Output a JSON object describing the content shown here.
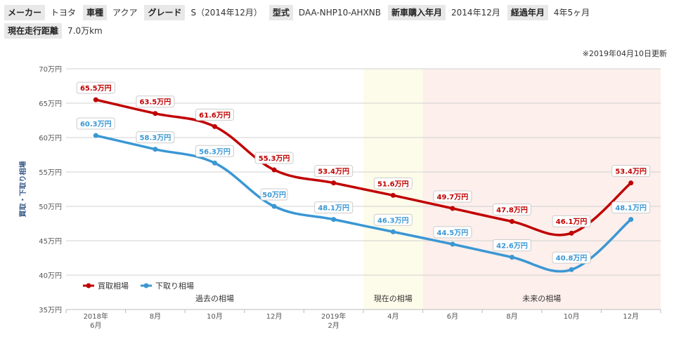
{
  "spec": {
    "row1": [
      {
        "label": "メーカー",
        "value": "トヨタ"
      },
      {
        "label": "車種",
        "value": "アクア"
      },
      {
        "label": "グレード",
        "value": "S（2014年12月）"
      },
      {
        "label": "型式",
        "value": "DAA-NHP10-AHXNB"
      },
      {
        "label": "新車購入年月",
        "value": "2014年12月"
      },
      {
        "label": "経過年月",
        "value": "4年5ヶ月"
      }
    ],
    "row2": [
      {
        "label": "現在走行距離",
        "value": "7.0万km"
      }
    ]
  },
  "update_note": "※2019年04月10日更新",
  "colors": {
    "buy": "#c00000",
    "trade": "#3a97d4",
    "current_bg": "#fdfcea",
    "future_bg": "#fcefec"
  },
  "chart_data": {
    "type": "line",
    "ylabel": "買取・下取り相場",
    "ylim": [
      35,
      70
    ],
    "y_ticks": [
      35,
      40,
      45,
      50,
      55,
      60,
      65,
      70
    ],
    "y_tick_suffix": "万円",
    "categories": [
      [
        "2018年",
        "6月"
      ],
      [
        "8月"
      ],
      [
        "10月"
      ],
      [
        "12月"
      ],
      [
        "2019年",
        "2月"
      ],
      [
        "4月"
      ],
      [
        "6月"
      ],
      [
        "8月"
      ],
      [
        "10月"
      ],
      [
        "12月"
      ]
    ],
    "series": [
      {
        "name": "買取相場",
        "color": "#c00000",
        "values": [
          65.5,
          63.5,
          61.6,
          55.3,
          53.4,
          51.6,
          49.7,
          47.8,
          46.1,
          53.4
        ],
        "labels": [
          "65.5万円",
          "63.5万円",
          "61.6万円",
          "55.3万円",
          "53.4万円",
          "51.6万円",
          "49.7万円",
          "47.8万円",
          "46.1万円",
          "53.4万円"
        ]
      },
      {
        "name": "下取り相場",
        "color": "#3a97d4",
        "values": [
          60.3,
          58.3,
          56.3,
          50,
          48.1,
          46.3,
          44.5,
          42.6,
          40.8,
          48.1
        ],
        "labels": [
          "60.3万円",
          "58.3万円",
          "56.3万円",
          "50万円",
          "48.1万円",
          "46.3万円",
          "44.5万円",
          "42.6万円",
          "40.8万円",
          "48.1万円"
        ]
      }
    ],
    "regions": [
      {
        "label": "過去の相場",
        "from": 0,
        "to": 5
      },
      {
        "label": "現在の相場",
        "from": 5,
        "to": 6
      },
      {
        "label": "未来の相場",
        "from": 6,
        "to": 10
      }
    ],
    "legend": "bottom-left",
    "grid": true
  }
}
